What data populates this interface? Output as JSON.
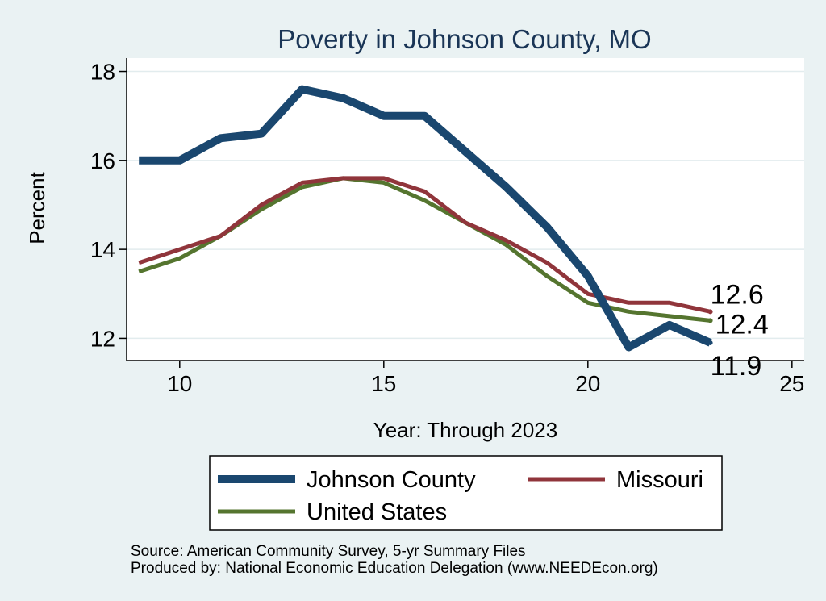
{
  "chart_data": {
    "type": "line",
    "title": "Poverty in Johnson County, MO",
    "xlabel": "Year: Through 2023",
    "ylabel": "Percent",
    "xlim": [
      8.7,
      25.3
    ],
    "ylim": [
      11.5,
      18.3
    ],
    "xticks": [
      10,
      15,
      20,
      25
    ],
    "yticks": [
      12,
      14,
      16,
      18
    ],
    "grid": true,
    "x": [
      9,
      10,
      11,
      12,
      13,
      14,
      15,
      16,
      17,
      18,
      19,
      20,
      21,
      22,
      23
    ],
    "series": [
      {
        "name": "Johnson County",
        "color": "#1a476f",
        "values": [
          16.0,
          16.0,
          16.5,
          16.6,
          17.6,
          17.4,
          17.0,
          17.0,
          16.2,
          15.4,
          14.5,
          13.4,
          11.8,
          12.3,
          11.9
        ],
        "end_label": "11.9"
      },
      {
        "name": "Missouri",
        "color": "#90353b",
        "values": [
          13.7,
          14.0,
          14.3,
          15.0,
          15.5,
          15.6,
          15.6,
          15.3,
          14.6,
          14.2,
          13.7,
          13.0,
          12.8,
          12.8,
          12.6
        ],
        "end_label": "12.6"
      },
      {
        "name": "United States",
        "color": "#55752f",
        "values": [
          13.5,
          13.8,
          14.3,
          14.9,
          15.4,
          15.6,
          15.5,
          15.1,
          14.6,
          14.1,
          13.4,
          12.8,
          12.6,
          12.5,
          12.4
        ],
        "end_label": "12.4"
      }
    ],
    "legend_position": "bottom"
  },
  "source_lines": [
    "Source: American Community Survey, 5-yr Summary Files",
    "Produced by: National Economic Education Delegation (www.NEEDEcon.org)"
  ]
}
